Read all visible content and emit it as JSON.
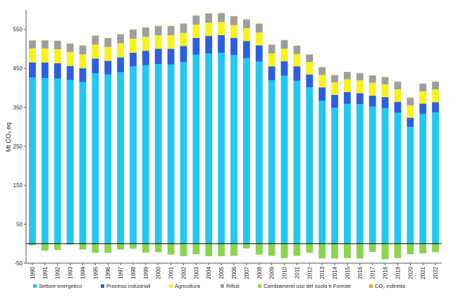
{
  "chart_data": {
    "type": "bar",
    "stacked": true,
    "ylabel": "Mt CO₂ eq",
    "ylim": [
      -50,
      600
    ],
    "yticks": [
      -50,
      50,
      150,
      250,
      350,
      450,
      550
    ],
    "grid": false,
    "legend_position": "bottom",
    "categories": [
      "1990",
      "1991",
      "1992",
      "1993",
      "1994",
      "1995",
      "1996",
      "1997",
      "1998",
      "1999",
      "2000",
      "2001",
      "2002",
      "2003",
      "2004",
      "2005",
      "2006",
      "2007",
      "2008",
      "2009",
      "2010",
      "2011",
      "2012",
      "2013",
      "2014",
      "2015",
      "2016",
      "2017",
      "2018",
      "2019",
      "2020",
      "2021",
      "2022"
    ],
    "series": [
      {
        "name": "Settore energetico",
        "color": "#21c9f0",
        "values": [
          426,
          425,
          424,
          420,
          415,
          437,
          434,
          440,
          455,
          458,
          461,
          460,
          466,
          485,
          488,
          490,
          484,
          476,
          467,
          419,
          431,
          418,
          401,
          367,
          349,
          359,
          358,
          352,
          348,
          336,
          300,
          333,
          337
        ]
      },
      {
        "name": "Processi industriali",
        "color": "#2c5fe0",
        "values": [
          39,
          40,
          39,
          36,
          35,
          38,
          35,
          38,
          35,
          37,
          39,
          40,
          41,
          43,
          45,
          45,
          44,
          44,
          42,
          36,
          37,
          37,
          33,
          34,
          33,
          30,
          28,
          28,
          28,
          28,
          23,
          26,
          26
        ]
      },
      {
        "name": "Agricoltura",
        "color": "#f7f21c",
        "values": [
          36,
          36,
          36,
          36,
          36,
          36,
          36,
          36,
          36,
          36,
          35,
          35,
          34,
          34,
          34,
          34,
          33,
          33,
          33,
          33,
          32,
          32,
          32,
          32,
          32,
          33,
          33,
          33,
          33,
          32,
          32,
          32,
          33
        ]
      },
      {
        "name": "Rifiuti",
        "color": "#9aa0a0",
        "values": [
          20,
          20,
          21,
          21,
          22,
          22,
          22,
          23,
          23,
          23,
          23,
          23,
          23,
          23,
          23,
          22,
          22,
          22,
          22,
          22,
          22,
          20,
          19,
          19,
          18,
          18,
          18,
          18,
          18,
          19,
          19,
          19,
          19
        ]
      },
      {
        "name": "Cambiamenti uso del suolo e Foreste",
        "color": "#8bd450",
        "values": [
          -4,
          -18,
          -16,
          -2,
          -15,
          -23,
          -23,
          -15,
          -13,
          -23,
          -22,
          -28,
          -32,
          -27,
          -32,
          -32,
          -31,
          -12,
          -28,
          -31,
          -37,
          -31,
          -23,
          -38,
          -38,
          -37,
          -38,
          -21,
          -40,
          -37,
          -27,
          -25,
          -22
        ]
      },
      {
        "name": "CO₂ indiretta",
        "color": "#f4a12c",
        "values": [
          1,
          1,
          1,
          1,
          1,
          1,
          1,
          1,
          1,
          1,
          1,
          1,
          1,
          1,
          1,
          1,
          1,
          1,
          1,
          1,
          1,
          1,
          1,
          1,
          1,
          1,
          1,
          1,
          1,
          1,
          1,
          1,
          1
        ]
      }
    ]
  }
}
